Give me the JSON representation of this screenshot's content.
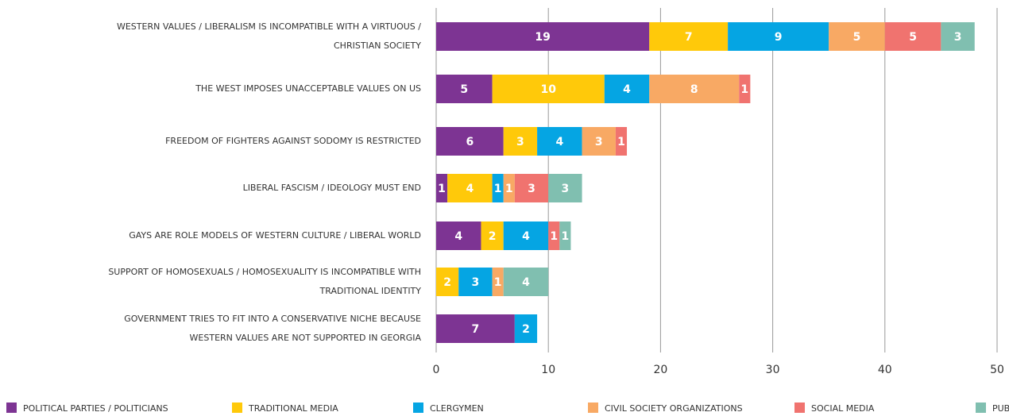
{
  "chart_data": {
    "type": "bar",
    "orientation": "horizontal",
    "stacked": true,
    "categories": [
      "WESTERN VALUES / LIBERALISM IS INCOMPATIBLE WITH A VIRTUOUS / CHRISTIAN SOCIETY",
      "THE WEST IMPOSES UNACCEPTABLE VALUES ON US",
      "FREEDOM OF FIGHTERS AGAINST SODOMY IS RESTRICTED",
      "LIBERAL FASCISM / IDEOLOGY MUST END",
      "GAYS ARE ROLE MODELS OF WESTERN CULTURE / LIBERAL WORLD",
      "SUPPORT OF HOMOSEXUALS / HOMOSEXUALITY IS INCOMPATIBLE WITH TRADITIONAL IDENTITY",
      "GOVERNMENT TRIES TO FIT INTO A CONSERVATIVE NICHE BECAUSE WESTERN VALUES ARE NOT SUPPORTED IN GEORGIA"
    ],
    "series": [
      {
        "name": "POLITICAL PARTIES / POLITICIANS",
        "color": "#7d3493",
        "values": [
          19,
          5,
          6,
          1,
          4,
          null,
          7
        ]
      },
      {
        "name": "TRADITIONAL MEDIA",
        "color": "#ffc90a",
        "values": [
          7,
          10,
          3,
          4,
          2,
          2,
          null
        ]
      },
      {
        "name": "CLERGYMEN",
        "color": "#05a5e3",
        "values": [
          9,
          4,
          4,
          1,
          4,
          3,
          2
        ]
      },
      {
        "name": "CIVIL SOCIETY ORGANIZATIONS",
        "color": "#f8a964",
        "values": [
          5,
          8,
          3,
          1,
          null,
          1,
          null
        ]
      },
      {
        "name": "SOCIAL MEDIA",
        "color": "#f0736f",
        "values": [
          5,
          1,
          1,
          3,
          1,
          null,
          null
        ]
      },
      {
        "name": "PUBLIC",
        "color": "#80bfb0",
        "values": [
          3,
          null,
          null,
          3,
          1,
          4,
          null
        ]
      }
    ],
    "xlim": [
      0,
      50
    ],
    "xticks": [
      0,
      10,
      20,
      30,
      40,
      50
    ],
    "grid": true,
    "legend": "bottom"
  }
}
